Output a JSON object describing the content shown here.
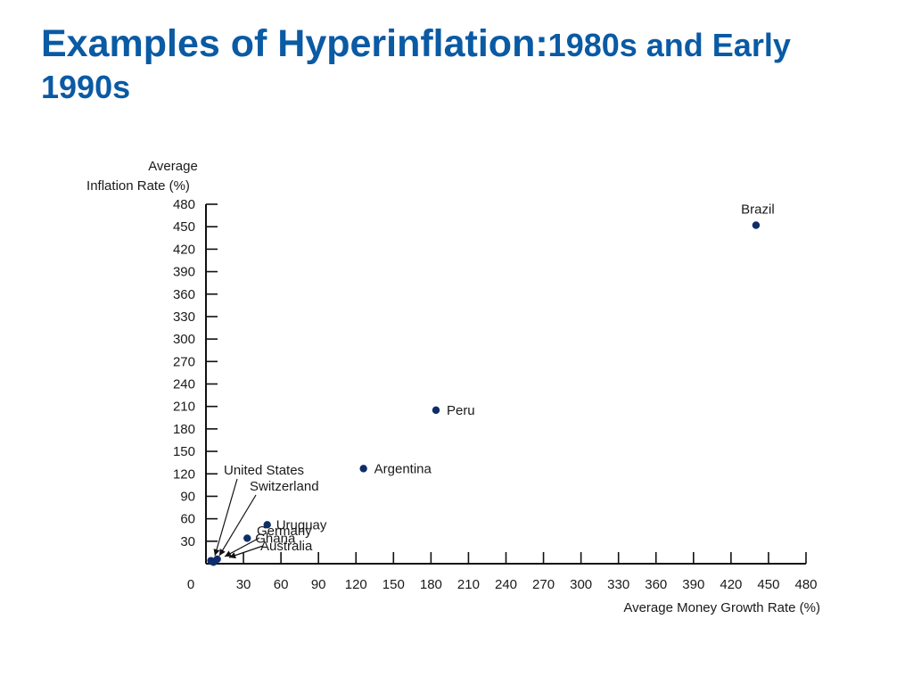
{
  "slide": {
    "title_main": "Examples of Hyperinflation:",
    "title_sub": "1980s and Early 1990s"
  },
  "chart_data": {
    "type": "scatter",
    "title": "",
    "xlabel": "Average Money Growth Rate (%)",
    "ylabel_line1": "Average",
    "ylabel_line2": "Inflation Rate (%)",
    "xlim": [
      0,
      480
    ],
    "ylim": [
      0,
      480
    ],
    "x_ticks": [
      30,
      60,
      90,
      120,
      150,
      180,
      210,
      240,
      270,
      300,
      330,
      360,
      390,
      420,
      450,
      480
    ],
    "y_ticks": [
      30,
      60,
      90,
      120,
      150,
      180,
      210,
      240,
      270,
      300,
      330,
      360,
      390,
      420,
      450,
      480
    ],
    "origin_label": "0",
    "grid": false,
    "point_color": "#0f2d6b",
    "points": [
      {
        "label": "United States",
        "x": 4,
        "y": 4
      },
      {
        "label": "Switzerland",
        "x": 5,
        "y": 3
      },
      {
        "label": "Germany",
        "x": 6,
        "y": 2
      },
      {
        "label": "Australia",
        "x": 9,
        "y": 6
      },
      {
        "label": "Ghana",
        "x": 33,
        "y": 34
      },
      {
        "label": "Uruguay",
        "x": 49,
        "y": 52
      },
      {
        "label": "Argentina",
        "x": 126,
        "y": 127
      },
      {
        "label": "Peru",
        "x": 184,
        "y": 205
      },
      {
        "label": "Brazil",
        "x": 440,
        "y": 452
      }
    ]
  }
}
